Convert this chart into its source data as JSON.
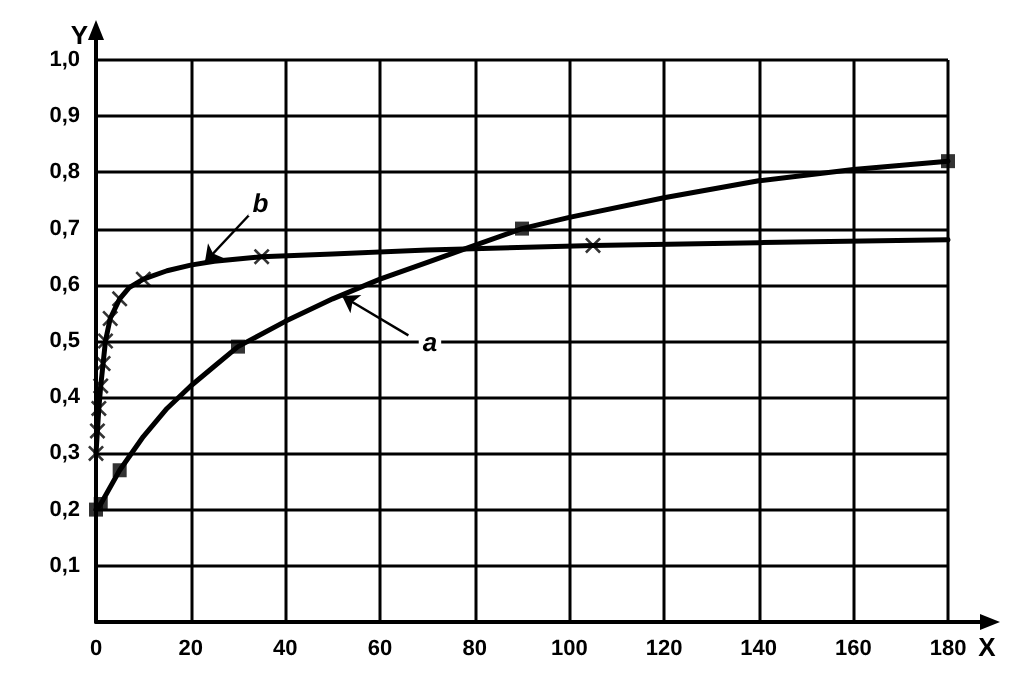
{
  "chart_data": {
    "type": "line",
    "xlabel": "X",
    "ylabel": "Y",
    "xlim": [
      0,
      180
    ],
    "xticks": [
      0,
      20,
      40,
      60,
      80,
      100,
      120,
      140,
      160,
      180
    ],
    "ylim": [
      0,
      1
    ],
    "yticks": [
      {
        "value": 0,
        "label": null
      },
      {
        "value": 0.1,
        "label": "0,1"
      },
      {
        "value": 0.2,
        "label": "0,2"
      },
      {
        "value": 0.3,
        "label": "0,3"
      },
      {
        "value": 0.4,
        "label": "0,4"
      },
      {
        "value": 0.5,
        "label": "0,5"
      },
      {
        "value": 0.6,
        "label": "0,6"
      },
      {
        "value": 0.7,
        "label": "0,7"
      },
      {
        "value": 0.8,
        "label": "0,8"
      },
      {
        "value": 0.9,
        "label": "0,9"
      },
      {
        "value": 1,
        "label": "1,0"
      }
    ],
    "grid": true,
    "line_style": "solid",
    "series": [
      {
        "type": "line",
        "color": "#000000",
        "marker": "none",
        "x": [
          0,
          1,
          5,
          10,
          15,
          20,
          25,
          30,
          40,
          50,
          60,
          70,
          80,
          90,
          100,
          120,
          140,
          160,
          180
        ],
        "values": [
          0.2,
          0.21,
          0.27,
          0.33,
          0.38,
          0.42,
          0.455,
          0.49,
          0.535,
          0.575,
          0.61,
          0.64,
          0.67,
          0.7,
          0.72,
          0.755,
          0.785,
          0.805,
          0.82
        ]
      },
      {
        "type": "scatter",
        "color": "#000000",
        "marker": "square",
        "x": [
          0,
          1,
          5,
          30,
          90,
          180
        ],
        "values": [
          0.2,
          0.21,
          0.27,
          0.49,
          0.7,
          0.82
        ]
      },
      {
        "type": "line",
        "color": "#000000",
        "marker": "none",
        "x": [
          0,
          0.3,
          0.6,
          1,
          1.5,
          2,
          3,
          5,
          7,
          10,
          15,
          20,
          25,
          35,
          50,
          70,
          105,
          140,
          180
        ],
        "values": [
          0.3,
          0.34,
          0.38,
          0.42,
          0.46,
          0.5,
          0.54,
          0.575,
          0.595,
          0.61,
          0.625,
          0.635,
          0.642,
          0.65,
          0.655,
          0.662,
          0.67,
          0.675,
          0.68
        ]
      },
      {
        "type": "scatter",
        "color": "#000000",
        "marker": "cross",
        "x": [
          0,
          0.3,
          0.6,
          1,
          1.5,
          2,
          3,
          5,
          10,
          35,
          105
        ],
        "values": [
          0.3,
          0.34,
          0.38,
          0.42,
          0.46,
          0.5,
          0.54,
          0.575,
          0.61,
          0.65,
          0.67
        ]
      }
    ],
    "annotations": [
      {
        "text": "a",
        "x": 52,
        "y": 0.58
      },
      {
        "text": "b",
        "x": 23,
        "y": 0.64
      }
    ]
  }
}
